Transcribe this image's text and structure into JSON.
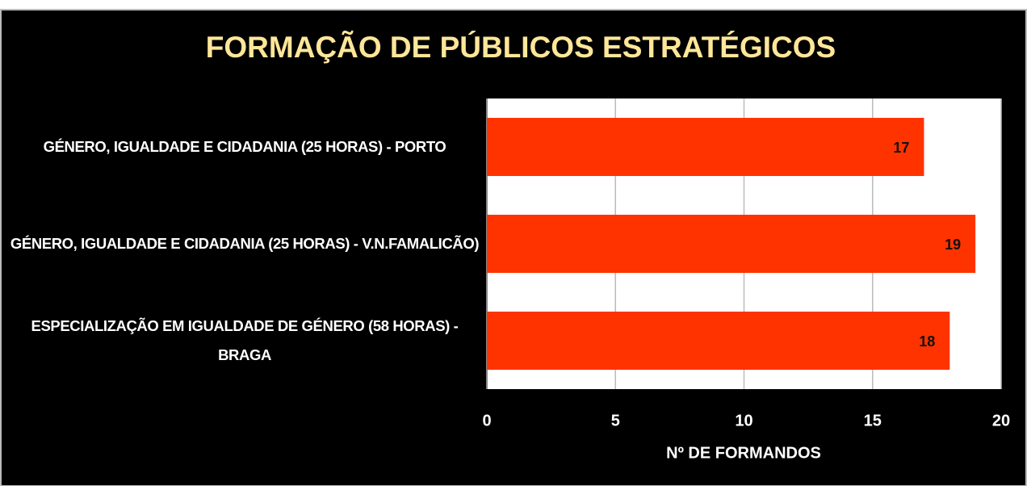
{
  "chart_data": {
    "type": "bar",
    "orientation": "horizontal",
    "title": "FORMAÇÃO DE PÚBLICOS ESTRATÉGICOS",
    "categories": [
      "GÉNERO, IGUALDADE E CIDADANIA (25 HORAS) - PORTO",
      "GÉNERO, IGUALDADE E CIDADANIA (25 HORAS) - V.N.FAMALICÃO)",
      "ESPECIALIZAÇÃO EM IGUALDADE DE GÉNERO (58 HORAS) - BRAGA"
    ],
    "values": [
      17,
      19,
      18
    ],
    "color": "#ff3300",
    "xlabel": "Nº DE FORMANDOS",
    "xlim": [
      0,
      20
    ],
    "xticks": [
      0,
      5,
      10,
      15,
      20
    ],
    "grid": true
  }
}
